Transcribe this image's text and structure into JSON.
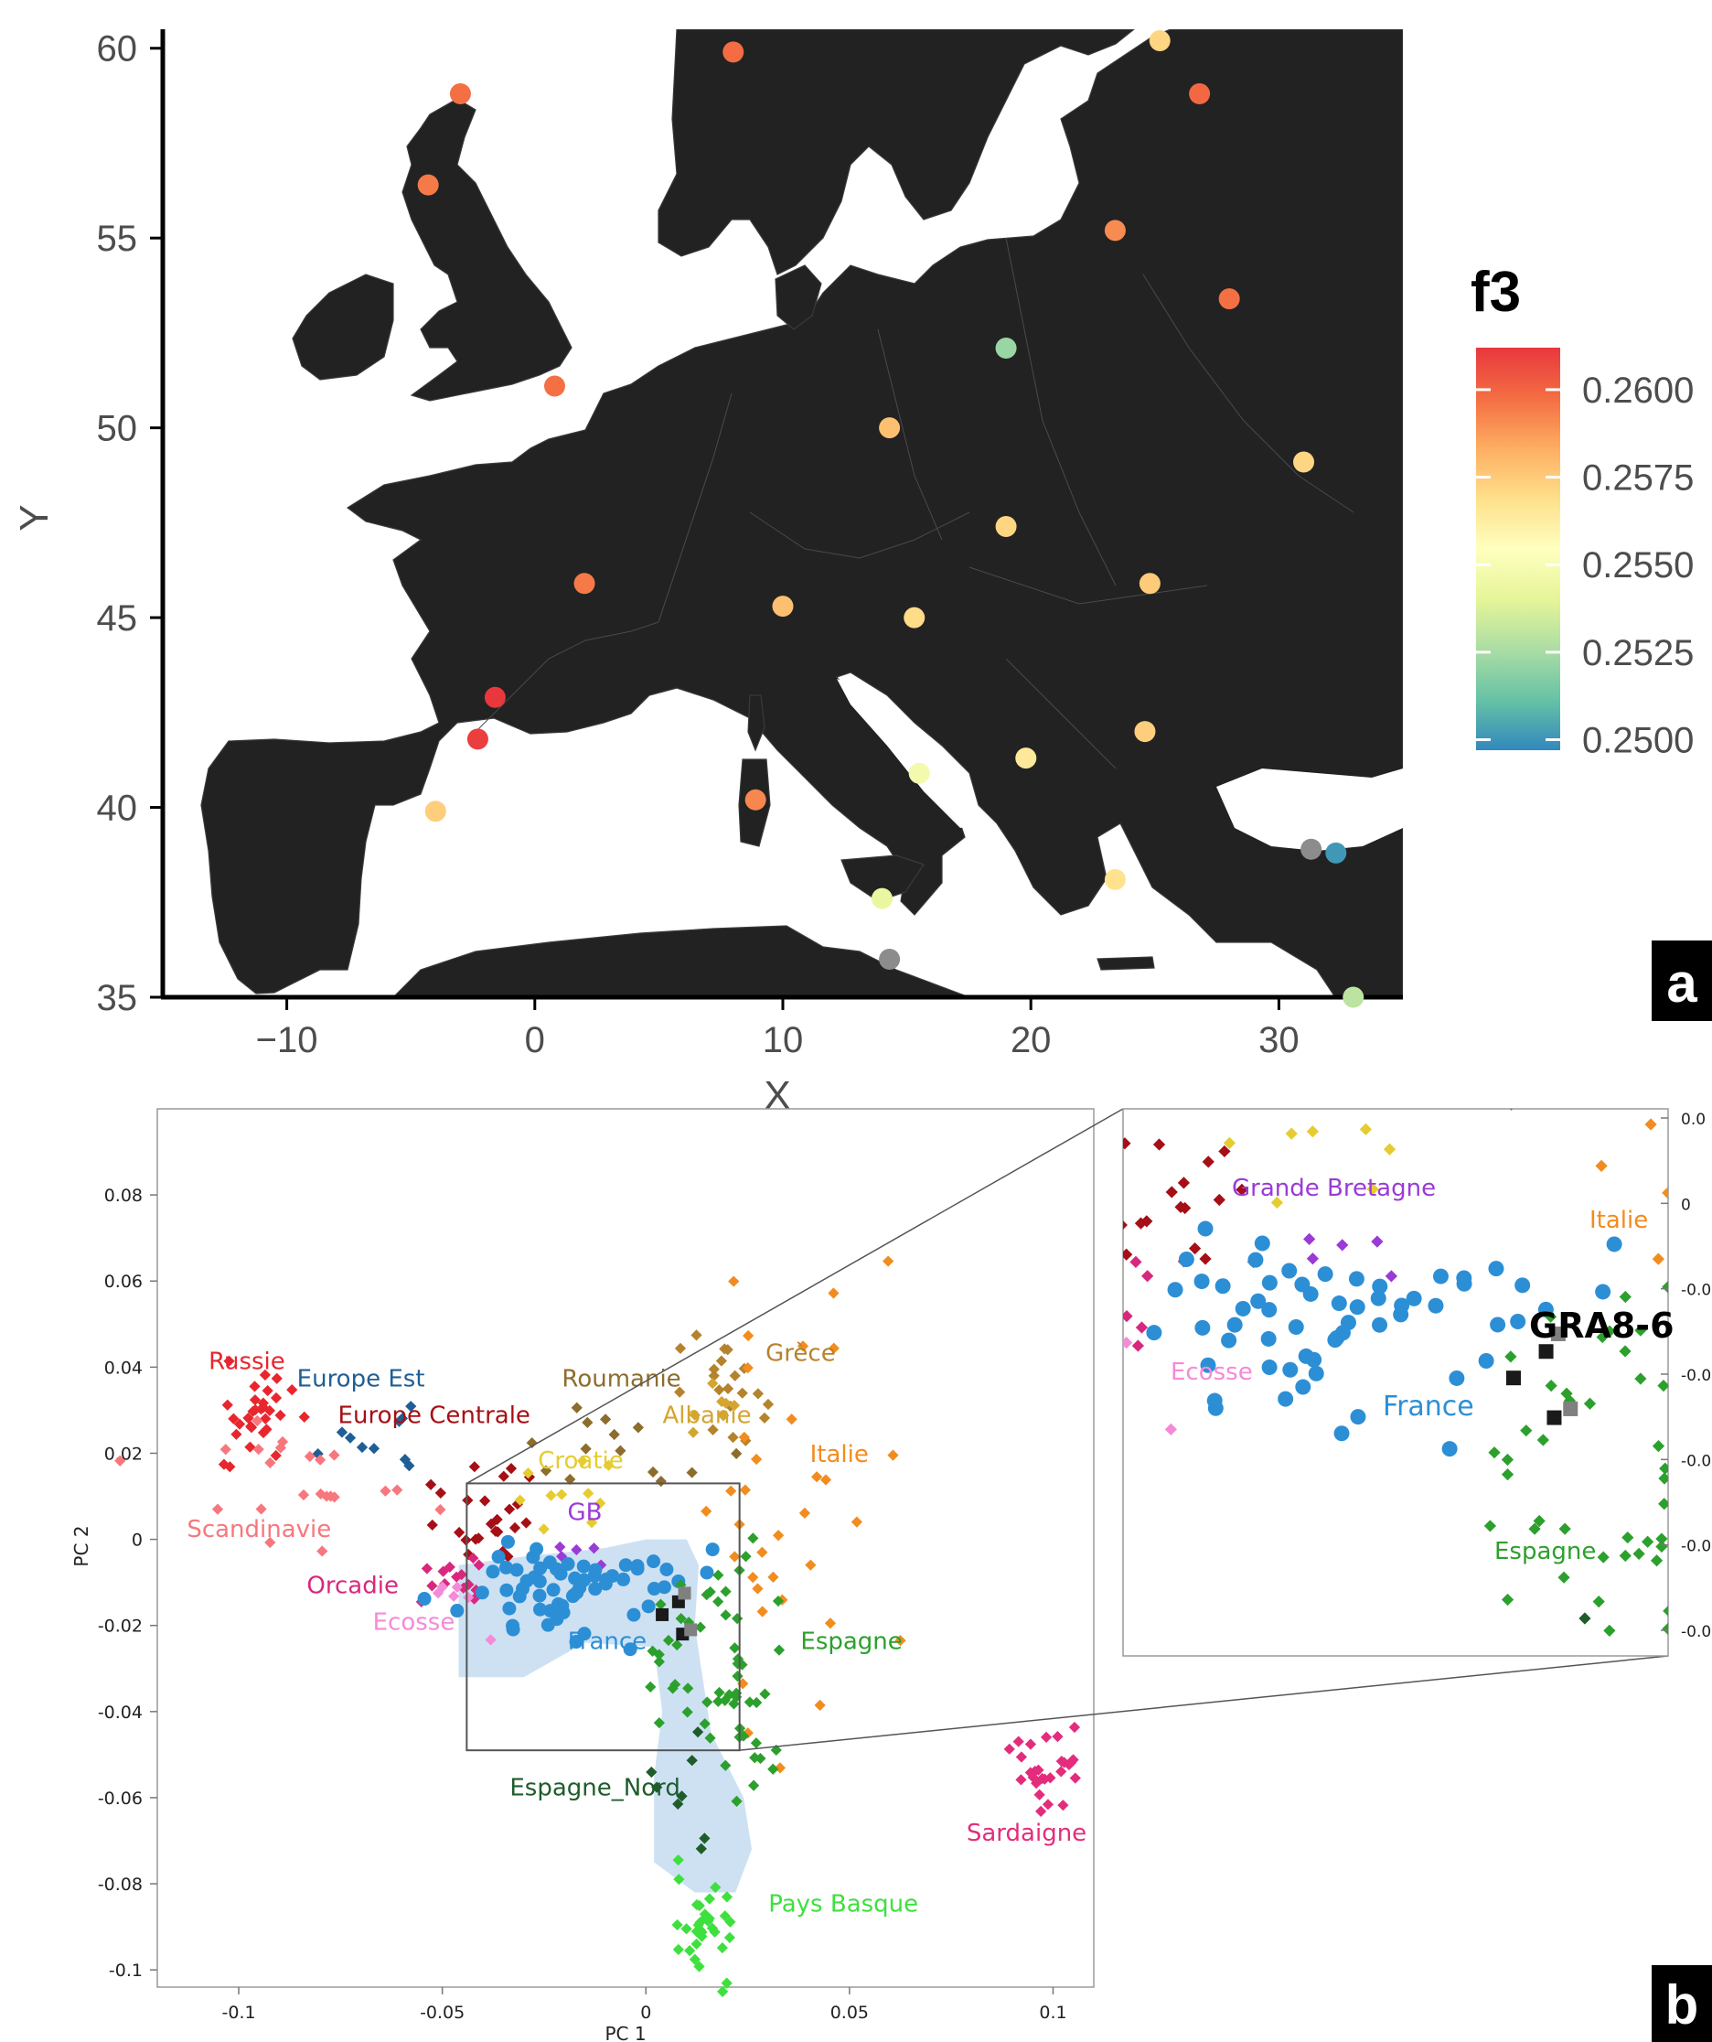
{
  "panel_labels": {
    "a": "a",
    "b": "b"
  },
  "chart_data": [
    {
      "panel": "a",
      "type": "scatter",
      "title": "",
      "xlabel": "X",
      "ylabel": "Y",
      "xlim": [
        -15,
        35
      ],
      "ylim": [
        35,
        60.5
      ],
      "xticks": [
        "−10",
        "0",
        "10",
        "20",
        "30"
      ],
      "xtick_values": [
        -10,
        0,
        10,
        20,
        30
      ],
      "yticks": [
        "35",
        "40",
        "45",
        "50",
        "55",
        "60"
      ],
      "ytick_values": [
        35,
        40,
        45,
        50,
        55,
        60
      ],
      "background": "map of Europe",
      "colorbar": {
        "title": "f3",
        "ticks": [
          "0.2600",
          "0.2575",
          "0.2550",
          "0.2525",
          "0.2500"
        ],
        "tick_values": [
          0.26,
          0.2575,
          0.255,
          0.2525,
          0.25
        ],
        "range": [
          0.2497,
          0.2612
        ],
        "colors": [
          "#3288bd",
          "#66c2a5",
          "#abdda4",
          "#e6f598",
          "#ffffbf",
          "#fee08b",
          "#fdae61",
          "#f46d43",
          "#e8383d"
        ]
      },
      "points": [
        {
          "x": 8.0,
          "y": 59.9,
          "f3": 0.2598
        },
        {
          "x": 25.2,
          "y": 60.2,
          "f3": 0.2572
        },
        {
          "x": -3.0,
          "y": 58.8,
          "f3": 0.2597
        },
        {
          "x": 26.8,
          "y": 58.8,
          "f3": 0.2599
        },
        {
          "x": -4.3,
          "y": 56.4,
          "f3": 0.2595
        },
        {
          "x": 23.4,
          "y": 55.2,
          "f3": 0.2591
        },
        {
          "x": 28.0,
          "y": 53.4,
          "f3": 0.2597
        },
        {
          "x": 19.0,
          "y": 52.1,
          "f3": 0.2522
        },
        {
          "x": 0.8,
          "y": 51.1,
          "f3": 0.2597
        },
        {
          "x": 14.3,
          "y": 50.0,
          "f3": 0.2578
        },
        {
          "x": 31.0,
          "y": 49.1,
          "f3": 0.2572
        },
        {
          "x": 19.0,
          "y": 47.4,
          "f3": 0.2572
        },
        {
          "x": 2.0,
          "y": 45.9,
          "f3": 0.2595
        },
        {
          "x": 24.8,
          "y": 45.9,
          "f3": 0.2575
        },
        {
          "x": 10.0,
          "y": 45.3,
          "f3": 0.2578
        },
        {
          "x": 15.3,
          "y": 45.0,
          "f3": 0.257
        },
        {
          "x": -1.6,
          "y": 42.9,
          "f3": 0.2612
        },
        {
          "x": -2.3,
          "y": 41.8,
          "f3": 0.261
        },
        {
          "x": 24.6,
          "y": 42.0,
          "f3": 0.2574
        },
        {
          "x": 19.8,
          "y": 41.3,
          "f3": 0.2565
        },
        {
          "x": 15.5,
          "y": 40.9,
          "f3": 0.2548
        },
        {
          "x": 8.9,
          "y": 40.2,
          "f3": 0.2592
        },
        {
          "x": -4.0,
          "y": 39.9,
          "f3": 0.2574
        },
        {
          "x": 31.3,
          "y": 38.9,
          "f3": null
        },
        {
          "x": 32.3,
          "y": 38.8,
          "f3": 0.2501
        },
        {
          "x": 23.4,
          "y": 38.1,
          "f3": 0.2568
        },
        {
          "x": 14.0,
          "y": 37.6,
          "f3": 0.2543
        },
        {
          "x": 14.3,
          "y": 36.0,
          "f3": null
        },
        {
          "x": 33.0,
          "y": 35.0,
          "f3": 0.253
        }
      ]
    },
    {
      "panel": "b",
      "type": "scatter",
      "title": "",
      "xlabel": "PC 1",
      "ylabel": "PC 2",
      "xlim": [
        -0.12,
        0.11
      ],
      "ylim": [
        -0.104,
        0.1
      ],
      "xticks": [
        "-0.1",
        "-0.05",
        "0",
        "0.05",
        "0.1"
      ],
      "xtick_values": [
        -0.1,
        -0.05,
        0,
        0.05,
        0.1
      ],
      "yticks": [
        "0.08",
        "0.06",
        "0.04",
        "0.02",
        "0",
        "-0.02",
        "-0.04",
        "-0.06",
        "-0.08",
        "-0.1"
      ],
      "ytick_values": [
        0.08,
        0.06,
        0.04,
        0.02,
        0,
        -0.02,
        -0.04,
        -0.06,
        -0.08,
        -0.1
      ],
      "zoom_box": {
        "x": [
          -0.044,
          0.023
        ],
        "y": [
          -0.049,
          0.013
        ]
      },
      "groups": [
        {
          "name": "Russie",
          "color": "#e8262d",
          "marker": "diamond",
          "label_pos": [
            -0.098,
            0.0395
          ],
          "center": [
            -0.095,
            0.028
          ],
          "spread": [
            0.008,
            0.006
          ],
          "n": 30
        },
        {
          "name": "Europe Est",
          "color": "#1f5e96",
          "marker": "diamond",
          "label_pos": [
            -0.07,
            0.0355
          ],
          "center": [
            -0.068,
            0.022
          ],
          "spread": [
            0.011,
            0.006
          ],
          "n": 10
        },
        {
          "name": "Europe Centrale",
          "color": "#a50f15",
          "marker": "diamond",
          "label_pos": [
            -0.052,
            0.027
          ],
          "center": [
            -0.039,
            0.006
          ],
          "spread": [
            0.006,
            0.005
          ],
          "n": 26
        },
        {
          "name": "Roumanie",
          "color": "#8c6d2c",
          "marker": "diamond",
          "label_pos": [
            -0.006,
            0.0355
          ],
          "center": [
            -0.01,
            0.021
          ],
          "spread": [
            0.012,
            0.008
          ],
          "n": 14
        },
        {
          "name": "Grèce",
          "color": "#b5832c",
          "marker": "diamond",
          "label_pos": [
            0.038,
            0.0415
          ],
          "center": [
            0.022,
            0.033
          ],
          "spread": [
            0.007,
            0.006
          ],
          "n": 20
        },
        {
          "name": "Albanie",
          "color": "#d4a530",
          "marker": "diamond",
          "label_pos": [
            0.015,
            0.027
          ],
          "center": [
            0.017,
            0.028
          ],
          "spread": [
            0.006,
            0.004
          ],
          "n": 8
        },
        {
          "name": "Croatie",
          "color": "#e6cc30",
          "marker": "diamond",
          "label_pos": [
            -0.016,
            0.0165
          ],
          "center": [
            -0.025,
            0.012
          ],
          "spread": [
            0.007,
            0.004
          ],
          "n": 10
        },
        {
          "name": "Italie",
          "color": "#f28c1e",
          "marker": "diamond",
          "label_pos": [
            0.0475,
            0.018
          ],
          "center": [
            0.035,
            0.018
          ],
          "spread": [
            0.012,
            0.025
          ],
          "n": 34
        },
        {
          "name": "Scandinavie",
          "color": "#f7777e",
          "marker": "diamond",
          "label_pos": [
            -0.095,
            0.0005
          ],
          "center": [
            -0.088,
            0.013
          ],
          "spread": [
            0.018,
            0.009
          ],
          "n": 22
        },
        {
          "name": "Orcadie",
          "color": "#d8287e",
          "marker": "diamond",
          "label_pos": [
            -0.072,
            -0.0125
          ],
          "center": [
            -0.048,
            -0.009
          ],
          "spread": [
            0.004,
            0.003
          ],
          "n": 14
        },
        {
          "name": "Ecosse",
          "color": "#f58ad8",
          "marker": "diamond",
          "label_pos": [
            -0.057,
            -0.021
          ],
          "center": [
            -0.044,
            -0.013
          ],
          "spread": [
            0.004,
            0.004
          ],
          "n": 6
        },
        {
          "name": "GB",
          "color": "#9a3bd6",
          "marker": "diamond",
          "label_pos": [
            -0.015,
            0.0045
          ],
          "center": [
            -0.014,
            -0.003
          ],
          "spread": [
            0.006,
            0.002
          ],
          "n": 5
        },
        {
          "name": "France",
          "color": "#2c8fd6",
          "marker": "circle",
          "label_pos": [
            -0.0095,
            -0.0255
          ],
          "center": [
            -0.018,
            -0.011
          ],
          "spread": [
            0.014,
            0.006
          ],
          "n": 62
        },
        {
          "name": "Espagne",
          "color": "#2ca02c",
          "marker": "diamond",
          "label_pos": [
            0.0505,
            -0.0255
          ],
          "center": [
            0.018,
            -0.031
          ],
          "spread": [
            0.008,
            0.014
          ],
          "n": 58
        },
        {
          "name": "Espagne_Nord",
          "color": "#1e5c2a",
          "marker": "diamond",
          "label_pos": [
            -0.0125,
            -0.0595
          ],
          "center": [
            0.011,
            -0.062
          ],
          "spread": [
            0.004,
            0.008
          ],
          "n": 8
        },
        {
          "name": "Sardaigne",
          "color": "#e42c7c",
          "marker": "diamond",
          "label_pos": [
            0.0935,
            -0.07
          ],
          "center": [
            0.099,
            -0.054
          ],
          "spread": [
            0.004,
            0.005
          ],
          "n": 28
        },
        {
          "name": "Pays Basque",
          "color": "#3ee03e",
          "marker": "diamond",
          "label_pos": [
            0.0485,
            -0.0865
          ],
          "center": [
            0.014,
            -0.09
          ],
          "spread": [
            0.004,
            0.006
          ],
          "n": 32
        }
      ],
      "samples": [
        {
          "x": 0.008,
          "y": -0.0145,
          "color": "#1a1a1a"
        },
        {
          "x": 0.0095,
          "y": -0.0125,
          "color": "#808080"
        },
        {
          "x": 0.004,
          "y": -0.0175,
          "color": "#1a1a1a"
        },
        {
          "x": 0.009,
          "y": -0.022,
          "color": "#1a1a1a"
        },
        {
          "x": 0.011,
          "y": -0.021,
          "color": "#808080"
        }
      ],
      "inset": {
        "labels": [
          {
            "text": "Grande Bretagne",
            "color": "#9a3bd6"
          },
          {
            "text": "Italie",
            "color": "#f28c1e"
          },
          {
            "text": "GRA8-6",
            "color": "#000000"
          },
          {
            "text": "Ecosse",
            "color": "#f58ad8"
          },
          {
            "text": "France",
            "color": "#2c8fd6"
          },
          {
            "text": "Espagne",
            "color": "#2ca02c"
          }
        ],
        "right_ticks": [
          "0.0",
          "0",
          "-0.0",
          "-0.0",
          "-0.0",
          "-0.0",
          "-0.0"
        ]
      }
    }
  ]
}
